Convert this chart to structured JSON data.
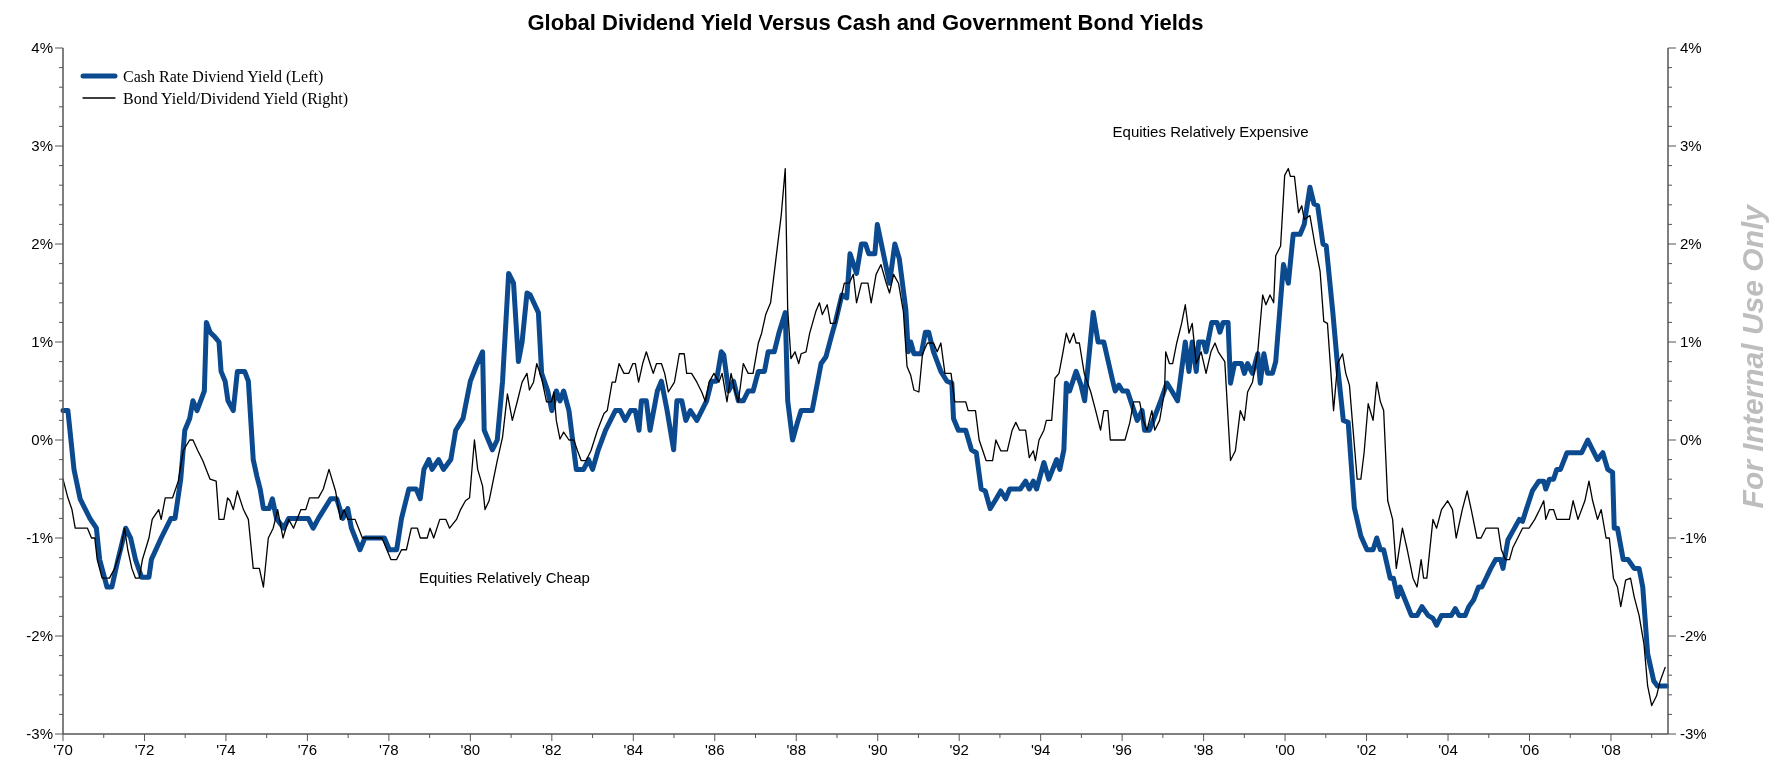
{
  "chart_data": {
    "type": "line",
    "title": "Global Dividend Yield Versus Cash and Government Bond Yields",
    "annotations": [
      "Equities Relatively Cheap",
      "Equities Relatively Expensive",
      "For Internal Use Only"
    ],
    "legend": "top left",
    "line_style": "solid",
    "xlim": [
      1970,
      2009.4
    ],
    "xticks": [
      {
        "value": 1970,
        "label": "'70"
      },
      {
        "value": 1971,
        "label": null
      },
      {
        "value": 1972,
        "label": "'72"
      },
      {
        "value": 1973,
        "label": null
      },
      {
        "value": 1974,
        "label": "'74"
      },
      {
        "value": 1975,
        "label": null
      },
      {
        "value": 1976,
        "label": "'76"
      },
      {
        "value": 1977,
        "label": null
      },
      {
        "value": 1978,
        "label": "'78"
      },
      {
        "value": 1979,
        "label": null
      },
      {
        "value": 1980,
        "label": "'80"
      },
      {
        "value": 1981,
        "label": null
      },
      {
        "value": 1982,
        "label": "'82"
      },
      {
        "value": 1983,
        "label": null
      },
      {
        "value": 1984,
        "label": "'84"
      },
      {
        "value": 1985,
        "label": null
      },
      {
        "value": 1986,
        "label": "'86"
      },
      {
        "value": 1987,
        "label": null
      },
      {
        "value": 1988,
        "label": "'88"
      },
      {
        "value": 1989,
        "label": null
      },
      {
        "value": 1990,
        "label": "'90"
      },
      {
        "value": 1991,
        "label": null
      },
      {
        "value": 1992,
        "label": "'92"
      },
      {
        "value": 1993,
        "label": null
      },
      {
        "value": 1994,
        "label": "'94"
      },
      {
        "value": 1995,
        "label": null
      },
      {
        "value": 1996,
        "label": "'96"
      },
      {
        "value": 1997,
        "label": null
      },
      {
        "value": 1998,
        "label": "'98"
      },
      {
        "value": 1999,
        "label": null
      },
      {
        "value": 2000,
        "label": "'00"
      },
      {
        "value": 2001,
        "label": null
      },
      {
        "value": 2002,
        "label": "'02"
      },
      {
        "value": 2003,
        "label": null
      },
      {
        "value": 2004,
        "label": "'04"
      },
      {
        "value": 2005,
        "label": null
      },
      {
        "value": 2006,
        "label": "'06"
      },
      {
        "value": 2007,
        "label": null
      },
      {
        "value": 2008,
        "label": "'08"
      },
      {
        "value": 2009,
        "label": null
      }
    ],
    "ylim": [
      -3,
      4
    ],
    "yticks": [
      {
        "value": -3,
        "label": "-3%"
      },
      {
        "value": -2.8,
        "label": null
      },
      {
        "value": -2.6,
        "label": null
      },
      {
        "value": -2.4,
        "label": null
      },
      {
        "value": -2.2,
        "label": null
      },
      {
        "value": -2,
        "label": "-2%"
      },
      {
        "value": -1.8,
        "label": null
      },
      {
        "value": -1.6,
        "label": null
      },
      {
        "value": -1.4,
        "label": null
      },
      {
        "value": -1.2,
        "label": null
      },
      {
        "value": -1,
        "label": "-1%"
      },
      {
        "value": -0.8,
        "label": null
      },
      {
        "value": -0.6,
        "label": null
      },
      {
        "value": -0.4,
        "label": null
      },
      {
        "value": -0.2,
        "label": null
      },
      {
        "value": 0,
        "label": "0%"
      },
      {
        "value": 0.2,
        "label": null
      },
      {
        "value": 0.4,
        "label": null
      },
      {
        "value": 0.6,
        "label": null
      },
      {
        "value": 0.8,
        "label": null
      },
      {
        "value": 1,
        "label": "1%"
      },
      {
        "value": 1.2,
        "label": null
      },
      {
        "value": 1.4,
        "label": null
      },
      {
        "value": 1.6,
        "label": null
      },
      {
        "value": 1.8,
        "label": null
      },
      {
        "value": 2,
        "label": "2%"
      },
      {
        "value": 2.2,
        "label": null
      },
      {
        "value": 2.4,
        "label": null
      },
      {
        "value": 2.6,
        "label": null
      },
      {
        "value": 2.8,
        "label": null
      },
      {
        "value": 3,
        "label": "3%"
      },
      {
        "value": 3.2,
        "label": null
      },
      {
        "value": 3.4,
        "label": null
      },
      {
        "value": 3.6,
        "label": null
      },
      {
        "value": 3.8,
        "label": null
      },
      {
        "value": 4,
        "label": "4%"
      }
    ],
    "y2lim": [
      -3,
      4
    ],
    "y2ticks": [
      {
        "value": -3,
        "label": "-3%"
      },
      {
        "value": -2.8,
        "label": null
      },
      {
        "value": -2.6,
        "label": null
      },
      {
        "value": -2.4,
        "label": null
      },
      {
        "value": -2.2,
        "label": null
      },
      {
        "value": -2,
        "label": "-2%"
      },
      {
        "value": -1.8,
        "label": null
      },
      {
        "value": -1.6,
        "label": null
      },
      {
        "value": -1.4,
        "label": null
      },
      {
        "value": -1.2,
        "label": null
      },
      {
        "value": -1,
        "label": "-1%"
      },
      {
        "value": -0.8,
        "label": null
      },
      {
        "value": -0.6,
        "label": null
      },
      {
        "value": -0.4,
        "label": null
      },
      {
        "value": -0.2,
        "label": null
      },
      {
        "value": 0,
        "label": "0%"
      },
      {
        "value": 0.2,
        "label": null
      },
      {
        "value": 0.4,
        "label": null
      },
      {
        "value": 0.6,
        "label": null
      },
      {
        "value": 0.8,
        "label": null
      },
      {
        "value": 1,
        "label": "1%"
      },
      {
        "value": 1.2,
        "label": null
      },
      {
        "value": 1.4,
        "label": null
      },
      {
        "value": 1.6,
        "label": null
      },
      {
        "value": 1.8,
        "label": null
      },
      {
        "value": 2,
        "label": "2%"
      },
      {
        "value": 2.2,
        "label": null
      },
      {
        "value": 2.4,
        "label": null
      },
      {
        "value": 2.6,
        "label": null
      },
      {
        "value": 2.8,
        "label": null
      },
      {
        "value": 3,
        "label": "3%"
      },
      {
        "value": 3.2,
        "label": null
      },
      {
        "value": 3.4,
        "label": null
      },
      {
        "value": 3.6,
        "label": null
      },
      {
        "value": 3.8,
        "label": null
      },
      {
        "value": 4,
        "label": "4%"
      }
    ],
    "series": [
      {
        "name": "Cash Rate Diviend Yield (Left)",
        "color": "#0b4a8f",
        "x": [
          1970.0,
          1970.12,
          1970.27,
          1970.42,
          1970.54,
          1970.66,
          1970.82,
          1970.9,
          1971.08,
          1971.2,
          1971.35,
          1971.54,
          1971.66,
          1971.78,
          1971.93,
          1972.11,
          1972.17,
          1972.41,
          1972.65,
          1972.75,
          1972.89,
          1972.99,
          1973.11,
          1973.19,
          1973.29,
          1973.47,
          1973.52,
          1973.61,
          1973.73,
          1973.83,
          1973.88,
          1973.98,
          1974.05,
          1974.18,
          1974.28,
          1974.46,
          1974.55,
          1974.67,
          1974.76,
          1974.84,
          1974.92,
          1975.06,
          1975.14,
          1975.24,
          1975.42,
          1975.54,
          1976.02,
          1976.14,
          1976.27,
          1976.57,
          1976.72,
          1976.87,
          1976.99,
          1977.08,
          1977.29,
          1977.41,
          1977.89,
          1978.01,
          1978.19,
          1978.31,
          1978.49,
          1978.67,
          1978.77,
          1978.86,
          1978.98,
          1979.06,
          1979.22,
          1979.34,
          1979.52,
          1979.64,
          1979.82,
          1980.0,
          1980.14,
          1980.3,
          1980.34,
          1980.54,
          1980.66,
          1980.79,
          1980.94,
          1981.06,
          1981.18,
          1981.27,
          1981.39,
          1981.47,
          1981.67,
          1981.75,
          1981.9,
          1982.0,
          1982.11,
          1982.2,
          1982.29,
          1982.42,
          1982.6,
          1982.78,
          1982.9,
          1983.0,
          1983.14,
          1983.32,
          1983.56,
          1983.68,
          1983.8,
          1983.93,
          1984.05,
          1984.14,
          1984.2,
          1984.32,
          1984.41,
          1984.59,
          1984.69,
          1984.83,
          1984.99,
          1985.07,
          1985.19,
          1985.29,
          1985.4,
          1985.56,
          1985.68,
          1985.8,
          1985.92,
          1986.04,
          1986.16,
          1986.22,
          1986.34,
          1986.46,
          1986.58,
          1986.7,
          1986.82,
          1986.94,
          1987.07,
          1987.22,
          1987.31,
          1987.46,
          1987.58,
          1987.73,
          1987.79,
          1987.91,
          1988.03,
          1988.12,
          1988.39,
          1988.61,
          1988.73,
          1988.89,
          1988.96,
          1989.12,
          1989.24,
          1989.32,
          1989.48,
          1989.6,
          1989.7,
          1989.78,
          1989.93,
          1989.99,
          1990.14,
          1990.29,
          1990.42,
          1990.53,
          1990.69,
          1990.75,
          1990.81,
          1990.89,
          1991.07,
          1991.17,
          1991.25,
          1991.37,
          1991.55,
          1991.7,
          1991.82,
          1991.86,
          1991.98,
          1992.16,
          1992.3,
          1992.42,
          1992.54,
          1992.64,
          1992.76,
          1992.88,
          1993.02,
          1993.14,
          1993.24,
          1993.5,
          1993.63,
          1993.72,
          1993.82,
          1993.9,
          1994.08,
          1994.2,
          1994.39,
          1994.47,
          1994.57,
          1994.63,
          1994.71,
          1994.87,
          1994.99,
          1995.08,
          1995.29,
          1995.41,
          1995.55,
          1995.77,
          1995.83,
          1995.92,
          1996.01,
          1996.13,
          1996.37,
          1996.49,
          1996.55,
          1996.67,
          1996.92,
          1997.1,
          1997.22,
          1997.36,
          1997.55,
          1997.64,
          1997.72,
          1997.82,
          1997.88,
          1998.0,
          1998.06,
          1998.2,
          1998.33,
          1998.4,
          1998.48,
          1998.6,
          1998.66,
          1998.76,
          1998.93,
          1999.0,
          1999.08,
          1999.2,
          1999.33,
          1999.39,
          1999.48,
          1999.57,
          1999.69,
          1999.77,
          1999.96,
          2000.08,
          2000.2,
          2000.37,
          2000.47,
          2000.61,
          2000.71,
          2000.8,
          2000.93,
          2001.01,
          2001.17,
          2001.29,
          2001.43,
          2001.55,
          2001.7,
          2001.86,
          2002.01,
          2002.16,
          2002.25,
          2002.34,
          2002.42,
          2002.58,
          2002.66,
          2002.76,
          2002.82,
          2003.1,
          2003.24,
          2003.36,
          2003.51,
          2003.63,
          2003.72,
          2003.84,
          2004.08,
          2004.18,
          2004.27,
          2004.42,
          2004.51,
          2004.63,
          2004.75,
          2004.83,
          2005.05,
          2005.17,
          2005.29,
          2005.35,
          2005.47,
          2005.59,
          2005.75,
          2005.83,
          2005.92,
          2006.07,
          2006.23,
          2006.35,
          2006.4,
          2006.49,
          2006.59,
          2006.67,
          2006.76,
          2006.92,
          2007.1,
          2007.28,
          2007.43,
          2007.55,
          2007.67,
          2007.8,
          2007.92,
          2008.04,
          2008.08,
          2008.16,
          2008.3,
          2008.42,
          2008.57,
          2008.69,
          2008.78,
          2008.9,
          2009.05,
          2009.14,
          2009.36
        ],
        "values": [
          0.3,
          0.3,
          -0.3,
          -0.6,
          -0.7,
          -0.8,
          -0.9,
          -1.22,
          -1.5,
          -1.5,
          -1.22,
          -0.9,
          -1.0,
          -1.22,
          -1.4,
          -1.4,
          -1.22,
          -1.0,
          -0.8,
          -0.8,
          -0.4,
          0.1,
          0.22,
          0.4,
          0.3,
          0.5,
          1.2,
          1.1,
          1.05,
          1.0,
          0.7,
          0.6,
          0.4,
          0.3,
          0.7,
          0.7,
          0.6,
          -0.2,
          -0.37,
          -0.5,
          -0.7,
          -0.7,
          -0.6,
          -0.8,
          -0.9,
          -0.8,
          -0.8,
          -0.9,
          -0.8,
          -0.6,
          -0.6,
          -0.8,
          -0.7,
          -0.9,
          -1.12,
          -1.0,
          -1.0,
          -1.12,
          -1.12,
          -0.8,
          -0.5,
          -0.5,
          -0.6,
          -0.3,
          -0.2,
          -0.3,
          -0.2,
          -0.3,
          -0.2,
          0.1,
          0.22,
          0.6,
          0.75,
          0.9,
          0.1,
          -0.1,
          0.0,
          0.6,
          1.7,
          1.6,
          0.8,
          1.0,
          1.5,
          1.48,
          1.3,
          0.68,
          0.5,
          0.3,
          0.5,
          0.4,
          0.5,
          0.3,
          -0.3,
          -0.3,
          -0.2,
          -0.3,
          -0.1,
          0.1,
          0.3,
          0.3,
          0.2,
          0.3,
          0.3,
          0.1,
          0.4,
          0.4,
          0.1,
          0.5,
          0.6,
          0.3,
          -0.1,
          0.4,
          0.4,
          0.2,
          0.3,
          0.2,
          0.3,
          0.4,
          0.6,
          0.6,
          0.9,
          0.87,
          0.5,
          0.6,
          0.4,
          0.4,
          0.5,
          0.5,
          0.7,
          0.7,
          0.9,
          0.9,
          1.1,
          1.3,
          0.4,
          0.0,
          0.18,
          0.3,
          0.3,
          0.78,
          0.85,
          1.1,
          1.2,
          1.48,
          1.45,
          1.9,
          1.7,
          2.0,
          2.0,
          1.9,
          1.9,
          2.2,
          1.9,
          1.6,
          2.0,
          1.85,
          1.33,
          0.9,
          1.0,
          0.88,
          0.88,
          1.1,
          1.1,
          0.9,
          0.7,
          0.6,
          0.58,
          0.22,
          0.1,
          0.1,
          -0.1,
          -0.13,
          -0.5,
          -0.52,
          -0.7,
          -0.62,
          -0.52,
          -0.6,
          -0.5,
          -0.5,
          -0.42,
          -0.5,
          -0.42,
          -0.5,
          -0.23,
          -0.4,
          -0.2,
          -0.3,
          -0.1,
          0.58,
          0.5,
          0.7,
          0.56,
          0.4,
          1.3,
          1.0,
          1.0,
          0.6,
          0.5,
          0.56,
          0.5,
          0.5,
          0.2,
          0.3,
          0.1,
          0.1,
          0.37,
          0.58,
          0.5,
          0.4,
          1.0,
          0.7,
          1.0,
          0.7,
          1.0,
          1.0,
          0.9,
          1.2,
          1.2,
          1.1,
          1.2,
          1.2,
          0.58,
          0.78,
          0.78,
          0.68,
          0.78,
          0.68,
          0.88,
          0.58,
          0.88,
          0.68,
          0.68,
          0.8,
          1.79,
          1.6,
          2.1,
          2.1,
          2.2,
          2.58,
          2.41,
          2.39,
          2.0,
          1.98,
          1.31,
          0.75,
          0.2,
          0.18,
          -0.69,
          -0.98,
          -1.12,
          -1.12,
          -1.0,
          -1.12,
          -1.12,
          -1.41,
          -1.41,
          -1.6,
          -1.5,
          -1.79,
          -1.79,
          -1.7,
          -1.79,
          -1.82,
          -1.89,
          -1.79,
          -1.79,
          -1.72,
          -1.79,
          -1.79,
          -1.7,
          -1.63,
          -1.5,
          -1.5,
          -1.31,
          -1.22,
          -1.22,
          -1.31,
          -1.02,
          -0.93,
          -0.81,
          -0.83,
          -0.71,
          -0.52,
          -0.42,
          -0.42,
          -0.5,
          -0.4,
          -0.4,
          -0.3,
          -0.3,
          -0.13,
          -0.13,
          -0.13,
          0.0,
          -0.1,
          -0.2,
          -0.13,
          -0.3,
          -0.33,
          -0.9,
          -0.9,
          -1.22,
          -1.22,
          -1.31,
          -1.31,
          -1.5,
          -2.18,
          -2.46,
          -2.51,
          -2.51
        ]
      },
      {
        "name": "Bond Yield/Dividend Yield (Right)",
        "color": "#000000",
        "axis": "y2",
        "x": [
          1970.0,
          1970.12,
          1970.22,
          1970.3,
          1970.48,
          1970.6,
          1970.7,
          1970.78,
          1970.84,
          1970.96,
          1971.14,
          1971.27,
          1971.42,
          1971.51,
          1971.59,
          1971.69,
          1971.78,
          1971.87,
          1971.95,
          1972.11,
          1972.19,
          1972.35,
          1972.41,
          1972.51,
          1972.69,
          1972.83,
          1972.95,
          1973.11,
          1973.19,
          1973.31,
          1973.43,
          1973.61,
          1973.76,
          1973.83,
          1973.95,
          1974.04,
          1974.1,
          1974.18,
          1974.28,
          1974.43,
          1974.55,
          1974.67,
          1974.82,
          1974.92,
          1975.04,
          1975.16,
          1975.27,
          1975.4,
          1975.54,
          1975.66,
          1975.84,
          1975.96,
          1976.05,
          1976.27,
          1976.39,
          1976.53,
          1976.69,
          1976.81,
          1976.9,
          1976.99,
          1977.17,
          1977.35,
          1977.83,
          1978.05,
          1978.19,
          1978.31,
          1978.43,
          1978.55,
          1978.7,
          1978.77,
          1978.94,
          1979.01,
          1979.1,
          1979.25,
          1979.4,
          1979.49,
          1979.66,
          1979.76,
          1979.88,
          1979.98,
          1980.1,
          1980.18,
          1980.3,
          1980.36,
          1980.46,
          1980.66,
          1980.79,
          1980.91,
          1981.03,
          1981.15,
          1981.27,
          1981.39,
          1981.45,
          1981.55,
          1981.63,
          1981.75,
          1981.87,
          1981.99,
          1982.05,
          1982.11,
          1982.2,
          1982.29,
          1982.42,
          1982.54,
          1982.63,
          1982.72,
          1982.84,
          1982.96,
          1983.12,
          1983.28,
          1983.36,
          1983.48,
          1983.56,
          1983.65,
          1983.77,
          1983.89,
          1983.99,
          1984.05,
          1984.13,
          1984.23,
          1984.32,
          1984.41,
          1984.49,
          1984.57,
          1984.69,
          1984.77,
          1984.86,
          1985.01,
          1985.13,
          1985.25,
          1985.31,
          1985.43,
          1985.56,
          1985.68,
          1985.77,
          1985.86,
          1985.98,
          1986.1,
          1986.18,
          1986.3,
          1986.4,
          1986.5,
          1986.58,
          1986.7,
          1986.82,
          1986.94,
          1987.07,
          1987.15,
          1987.25,
          1987.37,
          1987.49,
          1987.63,
          1987.73,
          1987.79,
          1987.87,
          1987.97,
          1988.06,
          1988.12,
          1988.24,
          1988.33,
          1988.48,
          1988.57,
          1988.64,
          1988.76,
          1988.84,
          1988.96,
          1989.06,
          1989.18,
          1989.3,
          1989.4,
          1989.48,
          1989.6,
          1989.76,
          1989.84,
          1989.96,
          1990.08,
          1990.21,
          1990.29,
          1990.39,
          1990.51,
          1990.63,
          1990.72,
          1990.81,
          1990.89,
          1991.01,
          1991.1,
          1991.22,
          1991.37,
          1991.46,
          1991.55,
          1991.65,
          1991.8,
          1991.89,
          1992.16,
          1992.22,
          1992.4,
          1992.49,
          1992.58,
          1992.66,
          1992.82,
          1992.9,
          1993.02,
          1993.18,
          1993.3,
          1993.39,
          1993.48,
          1993.63,
          1993.72,
          1993.82,
          1993.87,
          1993.96,
          1994.08,
          1994.14,
          1994.27,
          1994.35,
          1994.45,
          1994.54,
          1994.63,
          1994.71,
          1994.81,
          1994.87,
          1994.95,
          1995.07,
          1995.23,
          1995.35,
          1995.47,
          1995.55,
          1995.65,
          1995.71,
          1996.07,
          1996.19,
          1996.28,
          1996.43,
          1996.52,
          1996.61,
          1996.73,
          1996.8,
          1996.92,
          1997.04,
          1997.07,
          1997.16,
          1997.24,
          1997.34,
          1997.46,
          1997.55,
          1997.64,
          1997.72,
          1997.82,
          1997.94,
          1998.06,
          1998.18,
          1998.28,
          1998.36,
          1998.52,
          1998.66,
          1998.78,
          1998.9,
          1999.0,
          1999.08,
          1999.2,
          1999.33,
          1999.45,
          1999.53,
          1999.63,
          1999.72,
          1999.77,
          1999.89,
          1999.99,
          2000.08,
          2000.13,
          2000.23,
          2000.33,
          2000.41,
          2000.47,
          2000.61,
          2000.73,
          2000.86,
          2000.95,
          2001.04,
          2001.19,
          2001.29,
          2001.41,
          2001.49,
          2001.58,
          2001.65,
          2001.77,
          2001.86,
          2001.94,
          2002.04,
          2002.16,
          2002.25,
          2002.34,
          2002.42,
          2002.52,
          2002.64,
          2002.73,
          2002.88,
          2003.0,
          2003.14,
          2003.24,
          2003.34,
          2003.4,
          2003.48,
          2003.63,
          2003.72,
          2003.84,
          2003.99,
          2004.11,
          2004.2,
          2004.35,
          2004.47,
          2004.57,
          2004.71,
          2004.81,
          2004.93,
          2005.23,
          2005.31,
          2005.41,
          2005.51,
          2005.59,
          2005.71,
          2005.83,
          2005.99,
          2006.13,
          2006.25,
          2006.35,
          2006.4,
          2006.49,
          2006.59,
          2006.67,
          2006.98,
          2007.07,
          2007.19,
          2007.36,
          2007.46,
          2007.55,
          2007.67,
          2007.76,
          2007.88,
          2007.96,
          2008.06,
          2008.16,
          2008.24,
          2008.36,
          2008.48,
          2008.57,
          2008.69,
          2008.81,
          2008.9,
          2009.0,
          2009.12,
          2009.2,
          2009.33
        ],
        "values": [
          -0.4,
          -0.59,
          -0.71,
          -0.9,
          -0.9,
          -0.9,
          -1.0,
          -1.0,
          -1.22,
          -1.41,
          -1.41,
          -1.31,
          -1.12,
          -0.9,
          -1.12,
          -1.31,
          -1.41,
          -1.41,
          -1.22,
          -1.0,
          -0.81,
          -0.71,
          -0.81,
          -0.59,
          -0.59,
          -0.42,
          -0.11,
          0.0,
          0.0,
          -0.11,
          -0.21,
          -0.4,
          -0.42,
          -0.81,
          -0.81,
          -0.59,
          -0.62,
          -0.71,
          -0.52,
          -0.71,
          -0.81,
          -1.31,
          -1.31,
          -1.5,
          -1.0,
          -0.9,
          -0.71,
          -1.0,
          -0.81,
          -0.9,
          -0.71,
          -0.71,
          -0.59,
          -0.59,
          -0.5,
          -0.3,
          -0.52,
          -0.81,
          -0.71,
          -0.81,
          -0.81,
          -1.0,
          -1.0,
          -1.22,
          -1.22,
          -1.12,
          -1.12,
          -0.9,
          -0.9,
          -1.0,
          -1.0,
          -0.9,
          -1.0,
          -0.81,
          -0.81,
          -0.9,
          -0.81,
          -0.71,
          -0.62,
          -0.59,
          0.0,
          -0.3,
          -0.47,
          -0.71,
          -0.62,
          -0.21,
          0.03,
          0.47,
          0.2,
          0.39,
          0.59,
          0.68,
          0.51,
          0.59,
          0.78,
          0.63,
          0.39,
          0.39,
          0.49,
          0.2,
          0.01,
          0.08,
          0.0,
          0.0,
          -0.11,
          -0.21,
          -0.21,
          -0.11,
          0.1,
          0.27,
          0.3,
          0.59,
          0.59,
          0.78,
          0.68,
          0.68,
          0.78,
          0.78,
          0.59,
          0.78,
          0.9,
          0.78,
          0.68,
          0.78,
          0.78,
          0.68,
          0.49,
          0.59,
          0.88,
          0.88,
          0.68,
          0.68,
          0.59,
          0.49,
          0.39,
          0.59,
          0.68,
          0.59,
          0.68,
          0.39,
          0.68,
          0.49,
          0.39,
          0.78,
          0.68,
          0.68,
          0.99,
          1.09,
          1.28,
          1.4,
          1.81,
          2.29,
          2.77,
          1.33,
          0.83,
          0.9,
          0.78,
          0.88,
          0.9,
          1.09,
          1.31,
          1.4,
          1.28,
          1.38,
          1.19,
          1.19,
          1.38,
          1.6,
          1.6,
          1.69,
          1.4,
          1.6,
          1.6,
          1.4,
          1.69,
          1.79,
          1.6,
          1.5,
          1.69,
          1.6,
          1.31,
          0.75,
          0.66,
          0.51,
          0.49,
          0.88,
          0.99,
          0.99,
          0.9,
          0.99,
          0.68,
          0.68,
          0.39,
          0.39,
          0.3,
          0.3,
          0.0,
          -0.11,
          -0.21,
          -0.21,
          0.0,
          -0.11,
          -0.11,
          0.1,
          0.18,
          0.1,
          0.1,
          -0.18,
          -0.11,
          -0.21,
          0.0,
          0.1,
          0.2,
          0.2,
          0.63,
          0.68,
          0.88,
          1.09,
          0.99,
          1.09,
          0.99,
          0.99,
          0.68,
          0.49,
          0.3,
          0.1,
          0.3,
          0.3,
          0.0,
          0.0,
          0.18,
          0.39,
          0.39,
          0.2,
          0.1,
          0.3,
          0.1,
          0.2,
          0.49,
          0.9,
          0.78,
          0.78,
          0.99,
          1.19,
          1.38,
          1.09,
          1.19,
          0.78,
          0.9,
          0.68,
          0.9,
          0.99,
          0.9,
          0.8,
          -0.21,
          -0.11,
          0.3,
          0.2,
          0.49,
          0.59,
          0.9,
          1.48,
          1.38,
          1.48,
          1.4,
          1.88,
          1.98,
          2.7,
          2.77,
          2.69,
          2.69,
          2.32,
          2.39,
          2.25,
          2.29,
          2.0,
          1.72,
          1.21,
          1.19,
          0.3,
          0.78,
          0.88,
          0.68,
          0.56,
          0.2,
          -0.4,
          -0.4,
          -0.13,
          0.37,
          0.2,
          0.59,
          0.39,
          0.3,
          -0.62,
          -0.81,
          -1.31,
          -0.9,
          -1.12,
          -1.41,
          -1.5,
          -1.22,
          -1.41,
          -1.41,
          -0.81,
          -0.9,
          -0.71,
          -0.62,
          -0.71,
          -1.0,
          -0.71,
          -0.52,
          -0.71,
          -1.0,
          -1.0,
          -0.9,
          -0.9,
          -1.12,
          -1.22,
          -1.22,
          -1.1,
          -1.0,
          -0.9,
          -0.9,
          -0.81,
          -0.71,
          -0.62,
          -0.81,
          -0.71,
          -0.71,
          -0.81,
          -0.81,
          -0.62,
          -0.81,
          -0.62,
          -0.42,
          -0.62,
          -0.81,
          -0.71,
          -1.0,
          -1.0,
          -1.41,
          -1.5,
          -1.7,
          -1.43,
          -1.41,
          -1.6,
          -1.79,
          -2.08,
          -2.51,
          -2.71,
          -2.61,
          -2.47,
          -2.32
        ]
      }
    ]
  }
}
